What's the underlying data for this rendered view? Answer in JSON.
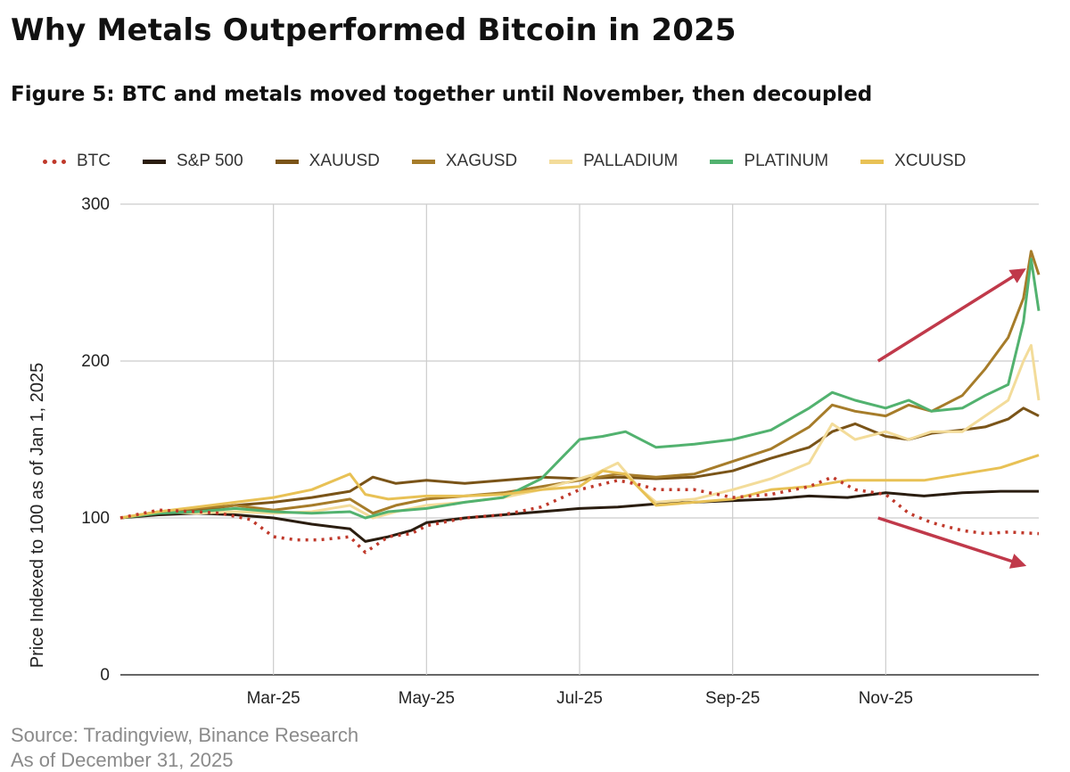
{
  "header": {
    "title": "Why Metals Outperformed Bitcoin in 2025",
    "subtitle": "Figure 5: BTC and metals moved together until November, then decoupled"
  },
  "footer": {
    "source": "Source: Tradingview, Binance Research",
    "asof": "As of December 31, 2025"
  },
  "chart_data": {
    "type": "line",
    "ylabel": "Price Indexed to 100 as of Jan 1, 2025",
    "ylim": [
      0,
      300
    ],
    "yticks": [
      0,
      100,
      200,
      300
    ],
    "xlim": [
      0,
      12
    ],
    "xticks": [
      {
        "label": "Mar-25",
        "x": 2
      },
      {
        "label": "May-25",
        "x": 4
      },
      {
        "label": "Jul-25",
        "x": 6
      },
      {
        "label": "Sep-25",
        "x": 8
      },
      {
        "label": "Nov-25",
        "x": 10
      }
    ],
    "grid": true,
    "legend_position": "top",
    "series": [
      {
        "name": "BTC",
        "color": "#c0392b",
        "style": "dotted",
        "x": [
          0,
          0.5,
          1,
          1.3,
          1.7,
          2,
          2.3,
          2.6,
          3,
          3.2,
          3.5,
          3.8,
          4,
          4.5,
          5,
          5.5,
          6,
          6.5,
          6.8,
          7,
          7.5,
          8,
          8.5,
          9,
          9.3,
          9.6,
          10,
          10.3,
          10.6,
          11,
          11.3,
          11.6,
          12
        ],
        "y": [
          100,
          105,
          104,
          103,
          99,
          88,
          86,
          86,
          88,
          78,
          88,
          90,
          95,
          100,
          102,
          107,
          118,
          124,
          121,
          118,
          118,
          113,
          115,
          120,
          126,
          118,
          115,
          103,
          97,
          92,
          90,
          91,
          90
        ]
      },
      {
        "name": "S&P 500",
        "color": "#2a1d10",
        "style": "solid",
        "x": [
          0,
          0.5,
          1,
          1.5,
          2,
          2.5,
          3,
          3.2,
          3.5,
          3.8,
          4,
          4.5,
          5,
          5.5,
          6,
          6.5,
          7,
          7.5,
          8,
          8.5,
          9,
          9.5,
          10,
          10.5,
          11,
          11.5,
          12
        ],
        "y": [
          100,
          102,
          103,
          102,
          100,
          96,
          93,
          85,
          88,
          92,
          97,
          100,
          102,
          104,
          106,
          107,
          109,
          110,
          111,
          112,
          114,
          113,
          116,
          114,
          116,
          117,
          117
        ]
      },
      {
        "name": "XAUUSD",
        "color": "#7a5418",
        "style": "solid",
        "x": [
          0,
          0.5,
          1,
          1.5,
          2,
          2.5,
          3,
          3.3,
          3.6,
          4,
          4.5,
          5,
          5.5,
          6,
          6.5,
          7,
          7.5,
          8,
          8.5,
          9,
          9.3,
          9.6,
          10,
          10.3,
          10.6,
          11,
          11.3,
          11.6,
          11.8,
          12
        ],
        "y": [
          100,
          103,
          105,
          108,
          110,
          113,
          117,
          126,
          122,
          124,
          122,
          124,
          126,
          125,
          126,
          125,
          126,
          130,
          138,
          145,
          155,
          160,
          152,
          150,
          154,
          156,
          158,
          163,
          170,
          165
        ]
      },
      {
        "name": "XAGUSD",
        "color": "#a67c2a",
        "style": "solid",
        "x": [
          0,
          0.5,
          1,
          1.5,
          2,
          2.5,
          3,
          3.3,
          3.6,
          4,
          4.5,
          5,
          5.5,
          6,
          6.5,
          7,
          7.5,
          8,
          8.5,
          9,
          9.3,
          9.6,
          10,
          10.3,
          10.6,
          11,
          11.3,
          11.6,
          11.8,
          11.9,
          12
        ],
        "y": [
          100,
          104,
          106,
          108,
          105,
          108,
          112,
          103,
          108,
          112,
          114,
          116,
          120,
          124,
          128,
          126,
          128,
          136,
          144,
          158,
          172,
          168,
          165,
          172,
          168,
          178,
          195,
          215,
          240,
          270,
          255
        ]
      },
      {
        "name": "PALLADIUM",
        "color": "#f3dc9a",
        "style": "solid",
        "x": [
          0,
          0.5,
          1,
          1.5,
          2,
          2.5,
          3,
          3.3,
          3.6,
          4,
          4.5,
          5,
          5.5,
          6,
          6.2,
          6.5,
          6.8,
          7,
          7.5,
          8,
          8.5,
          9,
          9.3,
          9.6,
          10,
          10.3,
          10.6,
          11,
          11.3,
          11.6,
          11.8,
          11.9,
          12
        ],
        "y": [
          100,
          104,
          103,
          104,
          103,
          104,
          108,
          100,
          104,
          108,
          110,
          113,
          118,
          125,
          128,
          135,
          118,
          110,
          112,
          118,
          125,
          135,
          160,
          150,
          155,
          150,
          155,
          155,
          165,
          175,
          200,
          210,
          175
        ]
      },
      {
        "name": "PLATINUM",
        "color": "#52b26f",
        "style": "solid",
        "x": [
          0,
          0.5,
          1,
          1.5,
          2,
          2.5,
          3,
          3.2,
          3.5,
          4,
          4.5,
          5,
          5.5,
          5.8,
          6,
          6.3,
          6.6,
          7,
          7.5,
          8,
          8.5,
          9,
          9.3,
          9.6,
          10,
          10.3,
          10.6,
          11,
          11.3,
          11.6,
          11.8,
          11.9,
          12
        ],
        "y": [
          100,
          103,
          104,
          106,
          104,
          103,
          104,
          100,
          104,
          106,
          110,
          113,
          125,
          140,
          150,
          152,
          155,
          145,
          147,
          150,
          156,
          170,
          180,
          175,
          170,
          175,
          168,
          170,
          178,
          185,
          225,
          265,
          232
        ]
      },
      {
        "name": "XCUUSD",
        "color": "#e8c155",
        "style": "solid",
        "x": [
          0,
          0.5,
          1,
          1.5,
          2,
          2.5,
          3,
          3.2,
          3.5,
          4,
          4.5,
          5,
          5.5,
          6,
          6.3,
          6.6,
          7,
          7.5,
          8,
          8.5,
          9,
          9.5,
          10,
          10.5,
          11,
          11.5,
          12
        ],
        "y": [
          100,
          104,
          107,
          110,
          113,
          118,
          128,
          115,
          112,
          114,
          114,
          115,
          118,
          120,
          130,
          128,
          108,
          110,
          112,
          118,
          120,
          124,
          124,
          124,
          128,
          132,
          140
        ]
      }
    ],
    "annotations": [
      {
        "type": "arrow",
        "color": "#c0394a",
        "from": [
          9.9,
          200
        ],
        "to": [
          11.8,
          258
        ]
      },
      {
        "type": "arrow",
        "color": "#c0394a",
        "from": [
          9.9,
          100
        ],
        "to": [
          11.8,
          70
        ]
      }
    ]
  }
}
